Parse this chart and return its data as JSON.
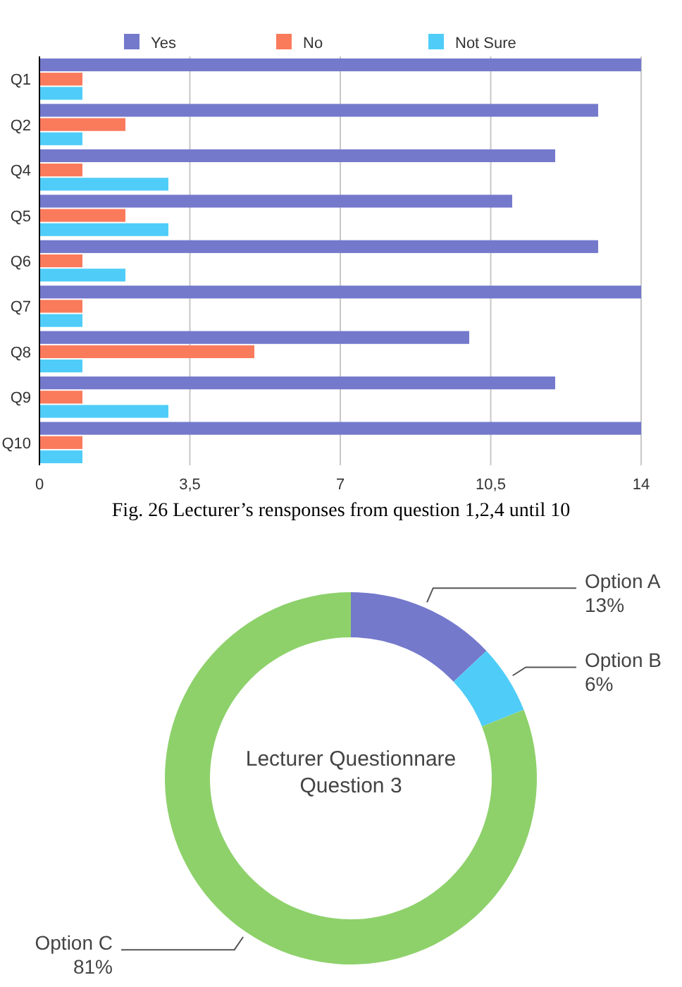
{
  "chart_data": [
    {
      "type": "bar",
      "orientation": "horizontal",
      "categories": [
        "Q1",
        "Q2",
        "Q4",
        "Q5",
        "Q6",
        "Q7",
        "Q8",
        "Q9",
        "Q10"
      ],
      "series": [
        {
          "name": "Yes",
          "color": "#7479cc",
          "values": [
            14,
            13,
            12,
            11,
            13,
            14,
            10,
            12,
            14
          ]
        },
        {
          "name": "No",
          "color": "#fa7a5c",
          "values": [
            1,
            2,
            1,
            2,
            1,
            1,
            5,
            1,
            1
          ]
        },
        {
          "name": "Not Sure",
          "color": "#4fcdf8",
          "values": [
            1,
            1,
            3,
            3,
            2,
            1,
            1,
            3,
            1
          ]
        }
      ],
      "xlim": [
        0,
        14
      ],
      "xticks": [
        0,
        {
          "value": 3.5,
          "label": "3,5"
        },
        7,
        {
          "value": 10.5,
          "label": "10,5"
        },
        14
      ],
      "grid": "x",
      "legend": "top",
      "annotations": [
        "Fig. 26 Lecturer’s rensponses from question 1,2,4 until 10"
      ]
    },
    {
      "type": "donut",
      "title": "Lecturer Questionnare\nQuestion 3",
      "categories": [
        "Option A",
        "Option B",
        "Option C"
      ],
      "values": [
        13,
        6,
        81
      ],
      "colors": [
        "#7479cc",
        "#4fcdf8",
        "#8ed16b"
      ],
      "value_labels": [
        "13%",
        "6%",
        "81%"
      ]
    }
  ]
}
